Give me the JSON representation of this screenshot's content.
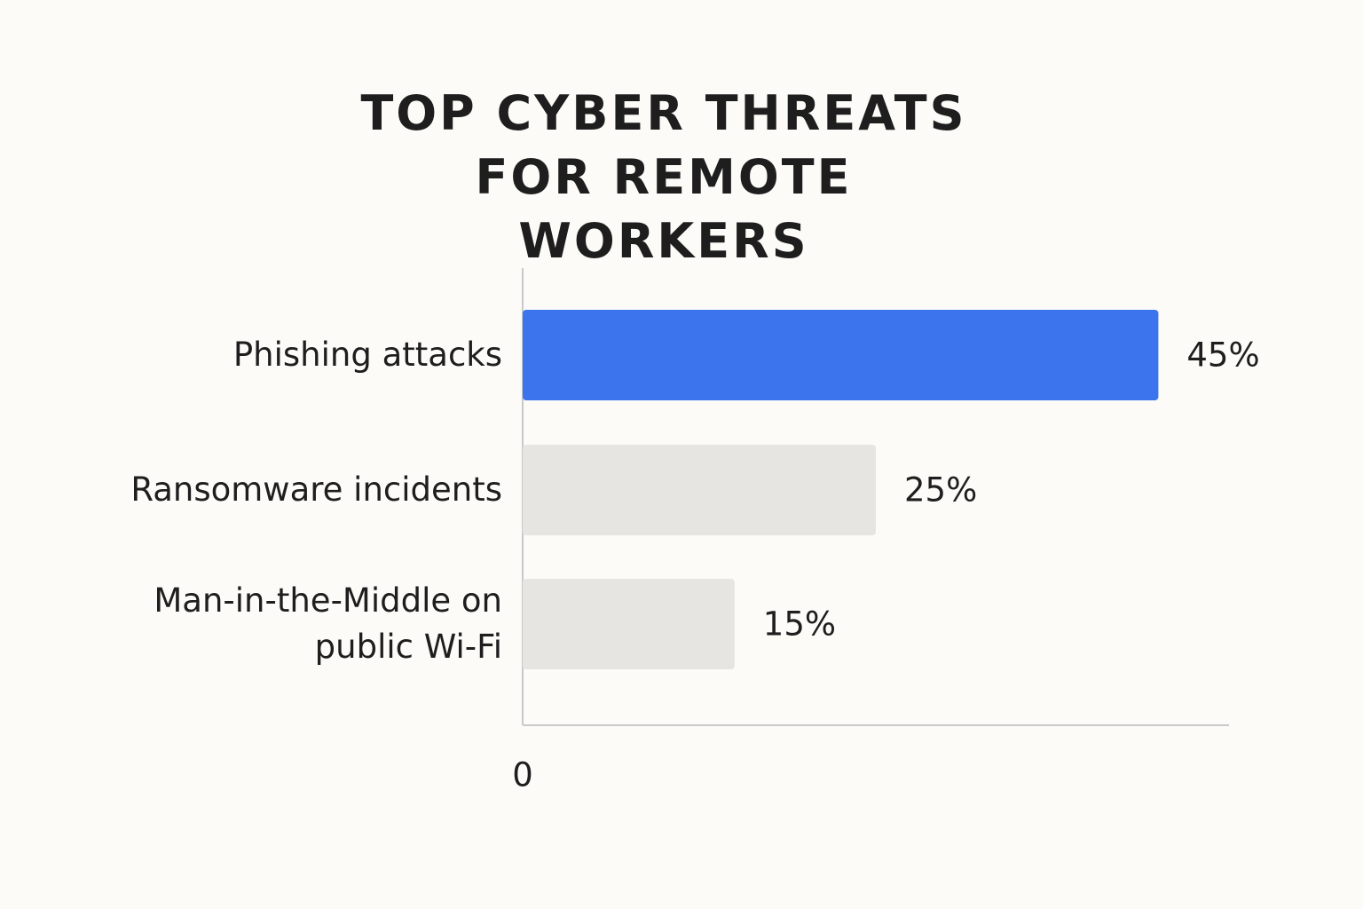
{
  "chart_data": {
    "type": "bar",
    "orientation": "horizontal",
    "title": "TOP CYBER THREATS FOR REMOTE WORKERS",
    "categories": [
      "Phishing attacks",
      "Ransomware incidents",
      "Man-in-the-Middle on public Wi-Fi"
    ],
    "values": [
      45,
      25,
      15
    ],
    "value_labels": [
      "45%",
      "25%",
      "15%"
    ],
    "colors": [
      "#3b74ec",
      "#e6e5e2",
      "#e6e5e2"
    ],
    "xlim": [
      0,
      50
    ],
    "xticks": [
      0
    ]
  }
}
